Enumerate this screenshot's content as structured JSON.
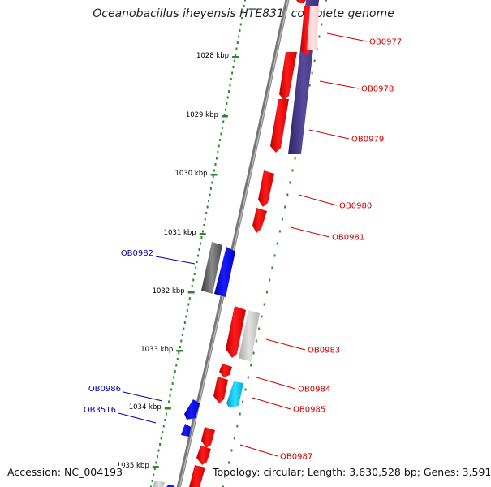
{
  "title": "Oceanobacillus iheyensis HTE831, complete genome",
  "footer": {
    "accession": "Accession: NC_004193",
    "info": "Topology: circular; Length: 3,630,528 bp; Genes: 3,591"
  },
  "colors": {
    "forward_gene": "#ff0000",
    "reverse_gene": "#0000ff",
    "rna_gene": "#00ccff",
    "other_gene": "#888888",
    "operon_bar": "#4a3a8a",
    "scale_ticks": "#2a8a2a",
    "label_right": "#cc0000",
    "label_left": "#0000aa",
    "backbone": "#777777"
  },
  "scale_labels": [
    "1028 kbp",
    "1029 kbp",
    "1030 kbp",
    "1031 kbp",
    "1032 kbp",
    "1033 kbp",
    "1034 kbp",
    "1035 kbp"
  ],
  "gene_labels_right": [
    "OB0977",
    "OB0978",
    "OB0979",
    "OB0980",
    "OB0981",
    "OB0983",
    "OB0984",
    "OB0985",
    "OB0987"
  ],
  "gene_labels_left": [
    "OB0982",
    "OB0986",
    "OB3516"
  ]
}
